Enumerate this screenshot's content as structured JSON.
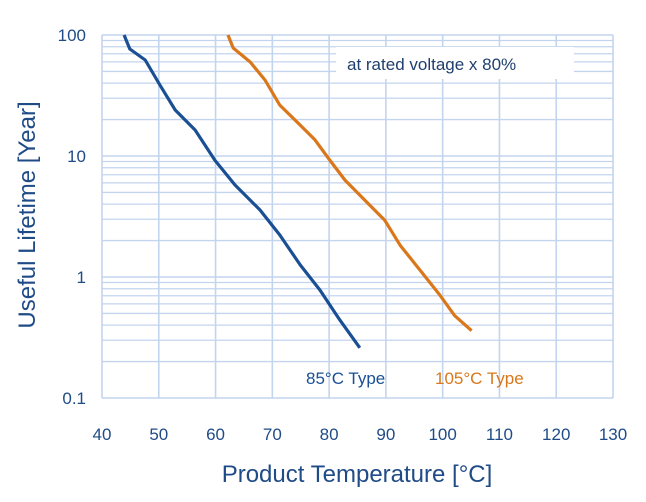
{
  "chart_data": {
    "type": "line",
    "title": "",
    "xlabel": "Product Temperature [°C]",
    "ylabel": "Useful Lifetime [Year]",
    "xlim": [
      40,
      130
    ],
    "ylim": [
      0.1,
      100
    ],
    "yscale": "log",
    "grid": true,
    "x_ticks": [
      "40",
      "50",
      "60",
      "70",
      "80",
      "90",
      "100",
      "110",
      "120",
      "130"
    ],
    "y_ticks": [
      "0.1",
      "1",
      "10",
      "100"
    ],
    "annotation": "at rated voltage x 80%",
    "series": [
      {
        "name": "85°C Type",
        "color": "#1a4f94",
        "points": [
          [
            43.9,
            100
          ],
          [
            44.9,
            76.6
          ],
          [
            47.6,
            62.2
          ],
          [
            50.2,
            38.6
          ],
          [
            52.9,
            24.0
          ],
          [
            56.4,
            16.4
          ],
          [
            59.9,
            9.2
          ],
          [
            63.4,
            5.77
          ],
          [
            67.8,
            3.59
          ],
          [
            71.3,
            2.23
          ],
          [
            74.9,
            1.26
          ],
          [
            78.4,
            0.78
          ],
          [
            81.9,
            0.44
          ],
          [
            85.4,
            0.26
          ]
        ]
      },
      {
        "name": "105°C Type",
        "color": "#d9771a",
        "points": [
          [
            62.2,
            100
          ],
          [
            63.1,
            78.1
          ],
          [
            66.1,
            59.8
          ],
          [
            68.7,
            42.5
          ],
          [
            71.3,
            26.4
          ],
          [
            74.9,
            18.0
          ],
          [
            77.5,
            13.6
          ],
          [
            80.1,
            9.27
          ],
          [
            82.8,
            6.32
          ],
          [
            86.3,
            4.31
          ],
          [
            89.8,
            2.94
          ],
          [
            92.5,
            1.83
          ],
          [
            96.0,
            1.14
          ],
          [
            99.5,
            0.71
          ],
          [
            102.1,
            0.48
          ],
          [
            105.1,
            0.36
          ]
        ]
      }
    ]
  }
}
